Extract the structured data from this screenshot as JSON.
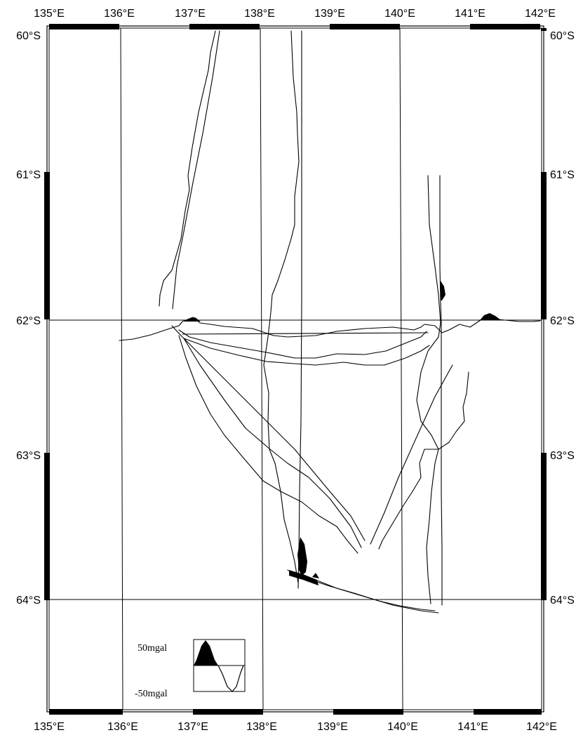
{
  "map": {
    "lon_labels": [
      "135°E",
      "136°E",
      "137°E",
      "138°E",
      "139°E",
      "140°E",
      "141°E",
      "142°E"
    ],
    "lat_labels": [
      "60°S",
      "61°S",
      "62°S",
      "63°S",
      "64°S"
    ],
    "lon_range": [
      135,
      142
    ],
    "lat_range": [
      -60,
      -64.6
    ]
  },
  "legend": {
    "top_label": "50mgal",
    "bottom_label": "-50mgal"
  }
}
